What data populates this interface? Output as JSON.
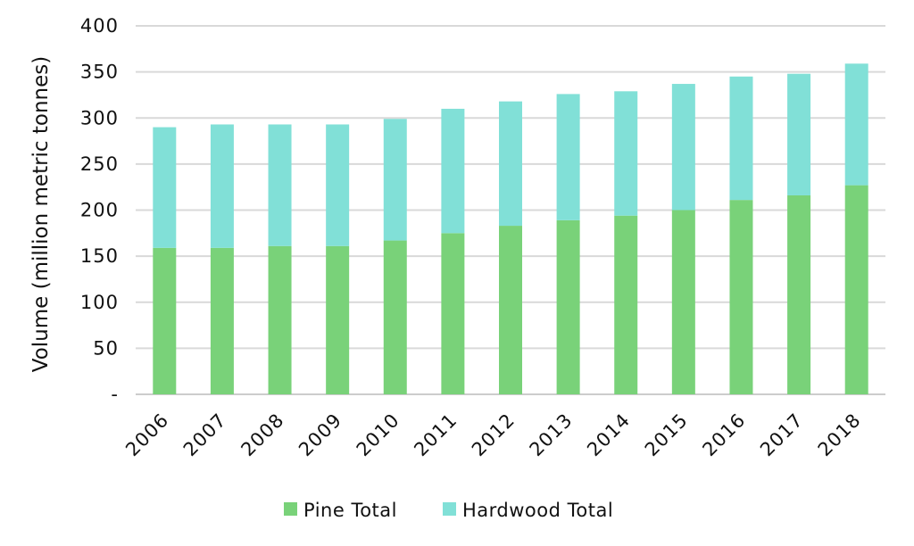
{
  "colors": {
    "pine": "#79d279",
    "hardwood": "#81e0d7",
    "grid": "#d9d9d9",
    "axis": "#cccccc"
  },
  "chart_data": {
    "type": "bar",
    "stacked": true,
    "title": "",
    "xlabel": "",
    "ylabel": "Volume (million metric tonnes)",
    "ylim": [
      0,
      400
    ],
    "yticks": [
      0,
      50,
      100,
      150,
      200,
      250,
      300,
      350,
      400
    ],
    "ytick_labels": [
      "-",
      "50",
      "100",
      "150",
      "200",
      "250",
      "300",
      "350",
      "400"
    ],
    "grid": "horizontal",
    "legend": "bottom",
    "categories": [
      "2006",
      "2007",
      "2008",
      "2009",
      "2010",
      "2011",
      "2012",
      "2013",
      "2014",
      "2015",
      "2016",
      "2017",
      "2018"
    ],
    "series": [
      {
        "name": "Pine Total",
        "values": [
          159,
          159,
          161,
          161,
          167,
          175,
          183,
          189,
          194,
          200,
          211,
          216,
          227
        ]
      },
      {
        "name": "Hardwood Total",
        "values": [
          131,
          134,
          132,
          132,
          132,
          135,
          135,
          137,
          135,
          137,
          134,
          132,
          132
        ]
      }
    ]
  }
}
